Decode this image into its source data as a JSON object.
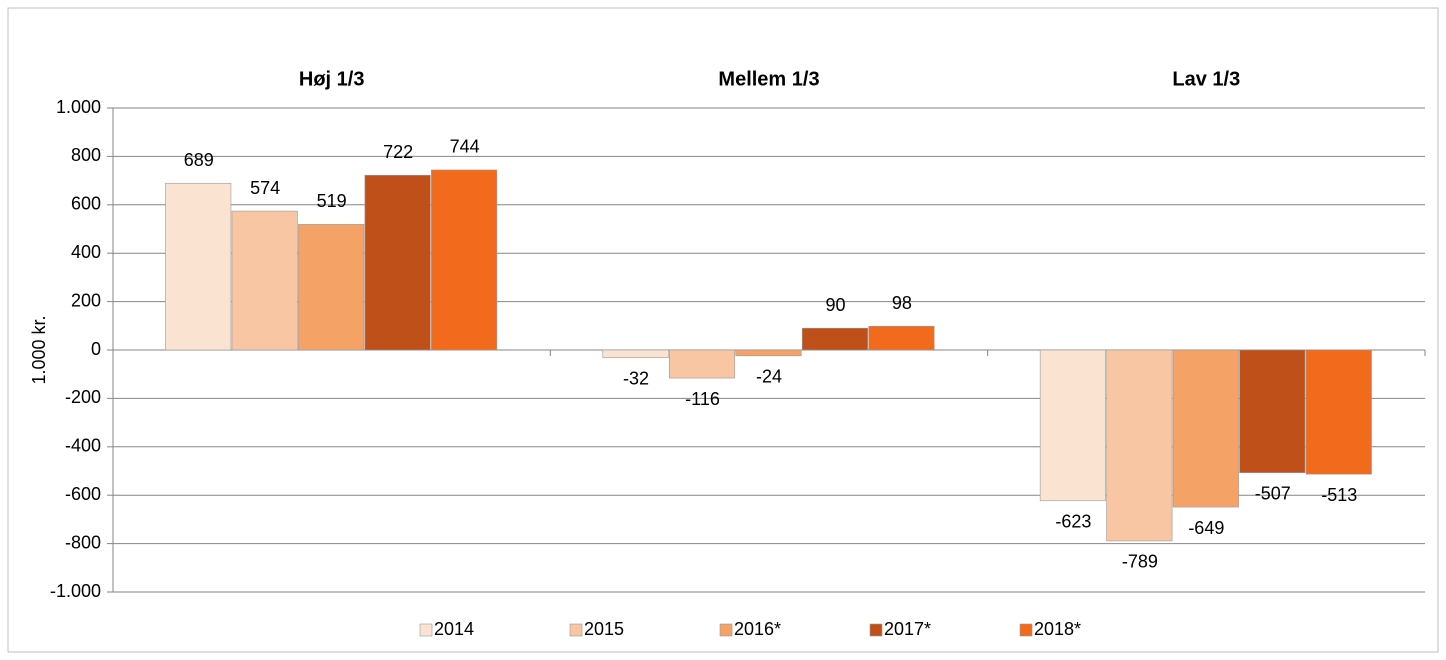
{
  "chart_data": {
    "type": "bar",
    "y_label": "1.000 kr.",
    "categories": [
      "Høj 1/3",
      "Mellem 1/3",
      "Lav 1/3"
    ],
    "series": [
      {
        "name": "2014",
        "color": "#fbe3d2",
        "values": [
          689,
          -32,
          -623
        ]
      },
      {
        "name": "2015",
        "color": "#f8c6a2",
        "values": [
          574,
          -116,
          -789
        ]
      },
      {
        "name": "2016*",
        "color": "#f4a266",
        "values": [
          519,
          -24,
          -649
        ]
      },
      {
        "name": "2017*",
        "color": "#c0501a",
        "values": [
          722,
          90,
          -507
        ]
      },
      {
        "name": "2018*",
        "color": "#f26a1b",
        "values": [
          744,
          98,
          -513
        ]
      }
    ],
    "ylim": [
      -1000,
      1000
    ],
    "yticks": [
      {
        "value": -1000,
        "label": "-1.000"
      },
      -800,
      -600,
      -400,
      -200,
      0,
      200,
      400,
      600,
      800,
      {
        "value": 1000,
        "label": "1.000"
      }
    ],
    "grid": true,
    "legend": "bottom"
  }
}
